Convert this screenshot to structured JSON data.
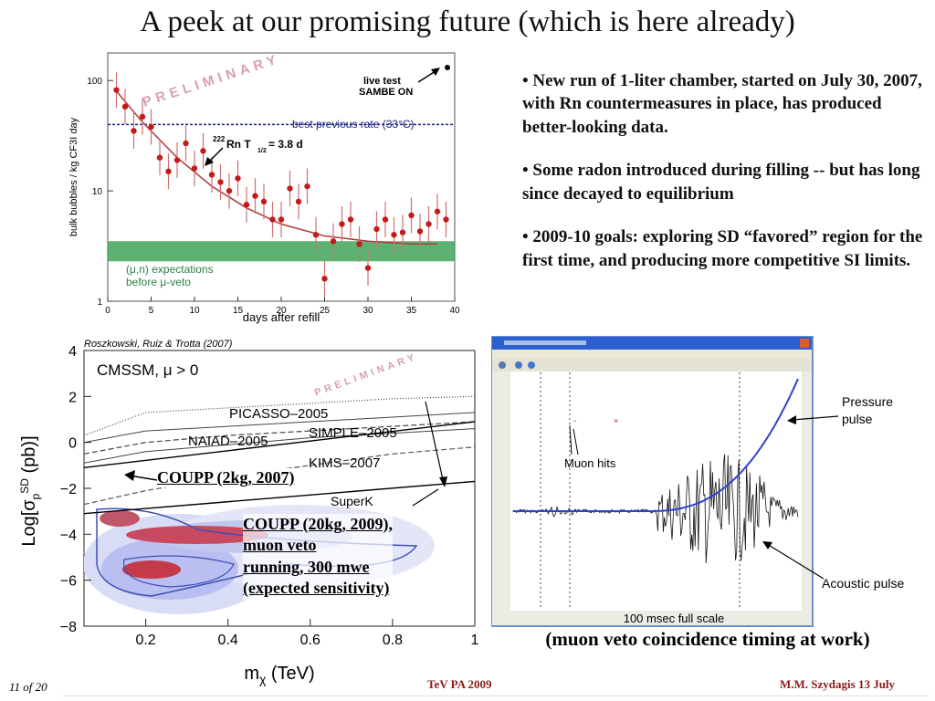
{
  "slide": {
    "title": "A peek at our promising future (which is here already)",
    "page_number": "11 of 20",
    "footer_center": "TeV PA 2009",
    "footer_right": "M.M. Szydagis   13  July"
  },
  "bullets": [
    "• New run of 1-liter chamber, started on July 30, 2007, with Rn countermeasures in place, has produced better-looking data.",
    "• Some radon introduced during filling -- but has long since decayed to equilibrium",
    "• 2009-10 goals: exploring SD “favored” region for the first time, and producing more competitive SI limits."
  ],
  "colors": {
    "data_points": "#c41a1a",
    "fit_curve": "#b03a3a",
    "best_line": "#1a237e",
    "green_band": "#3fa35a",
    "contour_blue": "#3d4fb5",
    "contour_red": "#c21a1a",
    "pressure_pulse": "#3040d0",
    "watermark": "#d7a0b4"
  },
  "chart_data": [
    {
      "type": "scatter",
      "xlabel": "days after refill",
      "ylabel": "bulk bubbles / kg CF3I day",
      "xlim": [
        0,
        40
      ],
      "ylim": [
        1,
        100
      ],
      "yscale": "log",
      "x_ticks": [
        "0",
        "5",
        "10",
        "15",
        "20",
        "25",
        "30",
        "35",
        "40"
      ],
      "y_ticks": [
        "1",
        "10",
        "100"
      ],
      "watermark": "PRELIMINARY",
      "annotations": {
        "live_test_1": "live test",
        "live_test_2": "SAMBE ON",
        "best_rate": "best previous rate (33°C)",
        "rn_label": "Rn T",
        "rn_sup": "222",
        "rn_sub": "1/2",
        "rn_value": "= 3.8 d",
        "expect_1": "(μ,n) expectations",
        "expect_2": "before μ-veto"
      },
      "best_previous_rate": 40,
      "band": [
        2.3,
        3.5
      ],
      "points": [
        {
          "x": 1,
          "y": 82
        },
        {
          "x": 2,
          "y": 58
        },
        {
          "x": 3,
          "y": 35
        },
        {
          "x": 4,
          "y": 47
        },
        {
          "x": 5,
          "y": 38
        },
        {
          "x": 6,
          "y": 20
        },
        {
          "x": 7,
          "y": 15
        },
        {
          "x": 8,
          "y": 19
        },
        {
          "x": 9,
          "y": 27
        },
        {
          "x": 10,
          "y": 16
        },
        {
          "x": 11,
          "y": 23
        },
        {
          "x": 12,
          "y": 14
        },
        {
          "x": 13,
          "y": 12
        },
        {
          "x": 14,
          "y": 10
        },
        {
          "x": 15,
          "y": 13
        },
        {
          "x": 16,
          "y": 7.5
        },
        {
          "x": 17,
          "y": 9
        },
        {
          "x": 18,
          "y": 8
        },
        {
          "x": 19,
          "y": 5.5
        },
        {
          "x": 20,
          "y": 5.5
        },
        {
          "x": 21,
          "y": 10.5
        },
        {
          "x": 22,
          "y": 8
        },
        {
          "x": 23,
          "y": 11
        },
        {
          "x": 24,
          "y": 4
        },
        {
          "x": 25,
          "y": 1.6
        },
        {
          "x": 26,
          "y": 3.5
        },
        {
          "x": 27,
          "y": 5
        },
        {
          "x": 28,
          "y": 5.5
        },
        {
          "x": 29,
          "y": 3.3
        },
        {
          "x": 30,
          "y": 2
        },
        {
          "x": 31,
          "y": 4.5
        },
        {
          "x": 32,
          "y": 5.5
        },
        {
          "x": 33,
          "y": 4
        },
        {
          "x": 34,
          "y": 4.2
        },
        {
          "x": 35,
          "y": 6
        },
        {
          "x": 36,
          "y": 4.3
        },
        {
          "x": 37,
          "y": 5
        },
        {
          "x": 38,
          "y": 6.5
        },
        {
          "x": 39,
          "y": 5.5
        }
      ],
      "fit_curve": [
        {
          "x": 1,
          "y": 80
        },
        {
          "x": 4,
          "y": 42
        },
        {
          "x": 8,
          "y": 20
        },
        {
          "x": 12,
          "y": 11
        },
        {
          "x": 16,
          "y": 7
        },
        {
          "x": 20,
          "y": 5
        },
        {
          "x": 25,
          "y": 3.9
        },
        {
          "x": 30,
          "y": 3.5
        },
        {
          "x": 35,
          "y": 3.3
        },
        {
          "x": 38,
          "y": 3.3
        }
      ]
    },
    {
      "type": "line",
      "xlabel": "mχ (TeV)",
      "ylabel": "Log[σp SD (pb)]",
      "xlim": [
        0.05,
        1.0
      ],
      "ylim": [
        -8,
        4
      ],
      "x_ticks": [
        "0.2",
        "0.4",
        "0.6",
        "0.8",
        "1"
      ],
      "y_ticks": [
        "4",
        "2",
        "0",
        "−2",
        "−4",
        "−6",
        "−8"
      ],
      "credit": "Roszkowski, Ruiz & Trotta (2007)",
      "model_label": "CMSSM, μ > 0",
      "watermark": "PRELIMINARY",
      "curve_labels": [
        "PICASSO–2005",
        "SIMPLE–2005",
        "NAIAD–2005",
        "KIMS–2007",
        "SuperK"
      ],
      "overlay_labels": {
        "coupp_2kg": "COUPP (2kg, 2007)",
        "coupp_20kg_1": "COUPP (20kg, 2009),",
        "coupp_20kg_2": "muon veto",
        "coupp_20kg_3": "running, 300 mwe",
        "coupp_20kg_4": "(expected sensitivity)"
      },
      "series": [
        {
          "name": "PICASSO–2005",
          "x": [
            0.05,
            0.2,
            0.4,
            0.6,
            0.8,
            1.0
          ],
          "y": [
            0.3,
            1.3,
            1.5,
            1.7,
            1.9,
            2.0
          ]
        },
        {
          "name": "SIMPLE–2005",
          "x": [
            0.05,
            0.2,
            0.4,
            0.6,
            0.8,
            1.0
          ],
          "y": [
            0.0,
            0.5,
            0.7,
            0.9,
            1.1,
            1.3
          ]
        },
        {
          "name": "NAIAD–2005",
          "x": [
            0.05,
            0.2,
            0.4,
            0.6,
            0.8,
            1.0
          ],
          "y": [
            -0.5,
            0.0,
            0.3,
            0.5,
            0.7,
            0.9
          ]
        },
        {
          "name": "KIMS–2007",
          "x": [
            0.05,
            0.2,
            0.4,
            0.6,
            0.8,
            1.0
          ],
          "y": [
            -0.9,
            -0.4,
            -0.1,
            0.2,
            0.4,
            0.6
          ]
        },
        {
          "name": "SuperK",
          "x": [
            0.05,
            0.2,
            0.4,
            0.6,
            0.8,
            1.0
          ],
          "y": [
            -2.7,
            -2.1,
            -1.5,
            -1.0,
            -0.5,
            -0.2
          ]
        },
        {
          "name": "COUPP (2kg, 2007)",
          "x": [
            0.05,
            1.0
          ],
          "y": [
            -1.1,
            0.9
          ]
        },
        {
          "name": "COUPP (20kg, 2009)",
          "x": [
            0.05,
            1.0
          ],
          "y": [
            -3.1,
            -1.7
          ]
        }
      ]
    },
    {
      "type": "line",
      "title": "",
      "annotations": {
        "pressure": "Pressure pulse",
        "pressure_1": "Pressure",
        "pressure_2": "pulse",
        "muon": "Muon hits",
        "acoustic": "Acoustic pulse",
        "scale": "100 msec full scale"
      }
    }
  ],
  "timing_caption": "(muon veto coincidence timing at work)"
}
